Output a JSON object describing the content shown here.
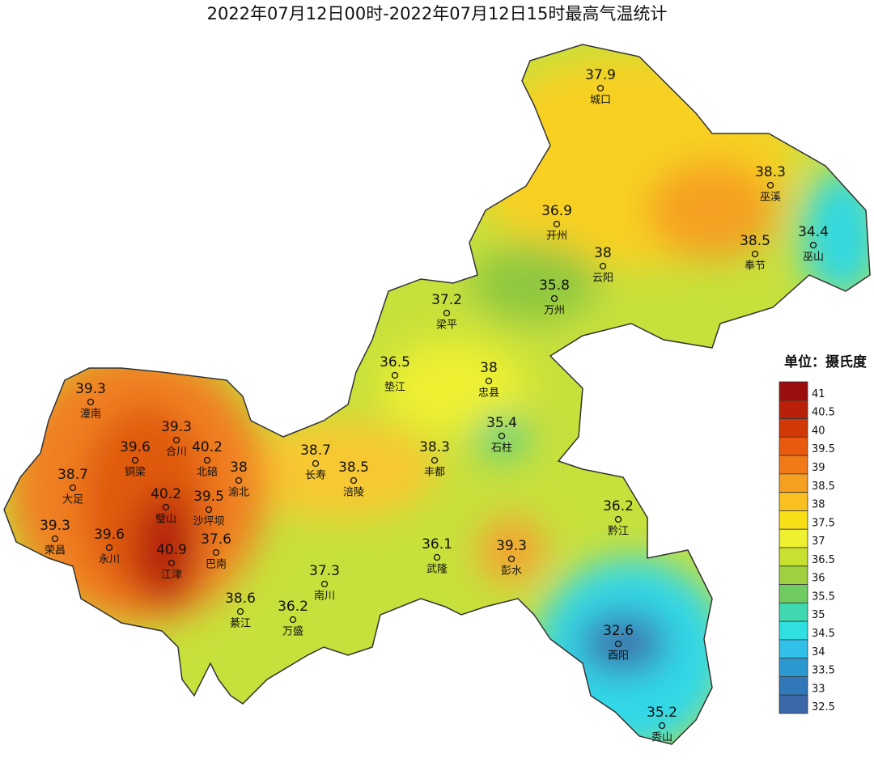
{
  "title": "2022年07月12日00时-2022年07月12日15时最高气温统计",
  "stations": [
    {
      "name": "城口",
      "value": 37.9
    },
    {
      "name": "巫溪",
      "value": 38.3
    },
    {
      "name": "开州",
      "value": 36.9
    },
    {
      "name": "云阳",
      "value": 38
    },
    {
      "name": "奉节",
      "value": 38.5
    },
    {
      "name": "巫山",
      "value": 34.4
    },
    {
      "name": "万州",
      "value": 35.8
    },
    {
      "name": "梁平",
      "value": 37.2
    },
    {
      "name": "垫江",
      "value": 36.5
    },
    {
      "name": "忠县",
      "value": 38
    },
    {
      "name": "潼南",
      "value": 39.3
    },
    {
      "name": "合川",
      "value": 39.3
    },
    {
      "name": "石柱",
      "value": 35.4
    },
    {
      "name": "铜梁",
      "value": 39.6
    },
    {
      "name": "北碚",
      "value": 40.2
    },
    {
      "name": "渝北",
      "value": 38
    },
    {
      "name": "长寿",
      "value": 38.7
    },
    {
      "name": "涪陵",
      "value": 38.5
    },
    {
      "name": "丰都",
      "value": 38.3
    },
    {
      "name": "大足",
      "value": 38.7
    },
    {
      "name": "璧山",
      "value": 40.2
    },
    {
      "name": "沙坪坝",
      "value": 39.5
    },
    {
      "name": "黔江",
      "value": 36.2
    },
    {
      "name": "荣昌",
      "value": 39.3
    },
    {
      "name": "永川",
      "value": 39.6
    },
    {
      "name": "巴南",
      "value": 37.6
    },
    {
      "name": "武隆",
      "value": 36.1
    },
    {
      "name": "彭水",
      "value": 39.3
    },
    {
      "name": "江津",
      "value": 40.9
    },
    {
      "name": "南川",
      "value": 37.3
    },
    {
      "name": "綦江",
      "value": 38.6
    },
    {
      "name": "万盛",
      "value": 36.2
    },
    {
      "name": "酉阳",
      "value": 32.6
    },
    {
      "name": "秀山",
      "value": 35.2
    }
  ],
  "legend": {
    "title": "单位：摄氏度",
    "levels": [
      {
        "value": 41,
        "color": "#9a0e0e"
      },
      {
        "value": 40.5,
        "color": "#b8200a"
      },
      {
        "value": 40,
        "color": "#d03808"
      },
      {
        "value": 39.5,
        "color": "#e85a10"
      },
      {
        "value": 39,
        "color": "#f07a18"
      },
      {
        "value": 38.5,
        "color": "#f5a020"
      },
      {
        "value": 38,
        "color": "#f8c020"
      },
      {
        "value": 37.5,
        "color": "#f8e018"
      },
      {
        "value": 37,
        "color": "#eef030"
      },
      {
        "value": 36.5,
        "color": "#c8e030"
      },
      {
        "value": 36,
        "color": "#a0d040"
      },
      {
        "value": 35.5,
        "color": "#70cc60"
      },
      {
        "value": 35,
        "color": "#40d8b0"
      },
      {
        "value": 34.5,
        "color": "#30e0e0"
      },
      {
        "value": 34,
        "color": "#30c0e8"
      },
      {
        "value": 33.5,
        "color": "#2c98d0"
      },
      {
        "value": 33,
        "color": "#3078b8"
      },
      {
        "value": 32.5,
        "color": "#3a68a8"
      }
    ]
  }
}
